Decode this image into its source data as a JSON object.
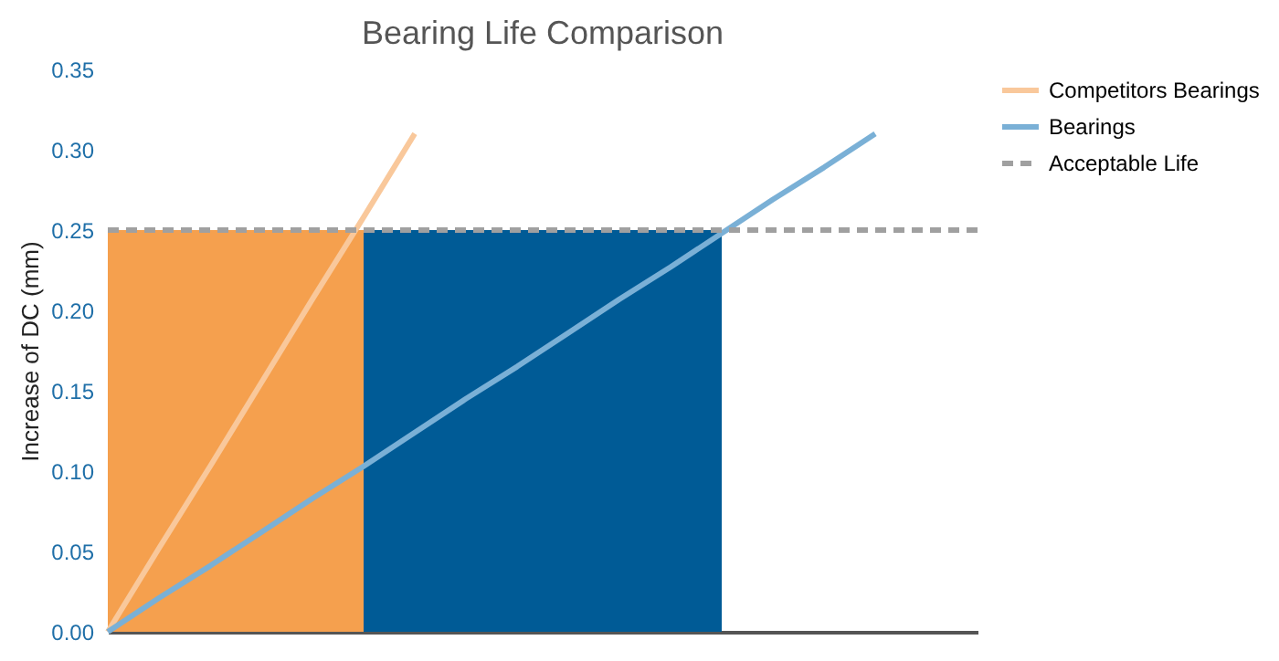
{
  "chart_data": {
    "type": "line",
    "title": "Bearing Life Comparison",
    "ylabel": "Increase of DC (mm)",
    "categories": [
      null,
      null,
      null,
      null,
      null,
      null,
      null,
      null,
      null,
      null,
      null,
      null,
      null,
      null,
      null,
      null,
      null,
      null
    ],
    "ylim": [
      0,
      0.35
    ],
    "yticks": [
      {
        "value": 0,
        "label": "0.00"
      },
      {
        "value": 0.05,
        "label": "0.05"
      },
      {
        "value": 0.1,
        "label": "0.10"
      },
      {
        "value": 0.15,
        "label": "0.15"
      },
      {
        "value": 0.2,
        "label": "0.20"
      },
      {
        "value": 0.25,
        "label": "0.25"
      },
      {
        "value": 0.3,
        "label": "0.30"
      },
      {
        "value": 0.35,
        "label": "0.35"
      }
    ],
    "tick_labels": "y",
    "grid": false,
    "legend": "right",
    "marker": "none",
    "series": [
      {
        "type": "area",
        "color": "#f5a04e",
        "values": [
          0.25,
          0.25,
          0.25,
          0.25,
          0.25,
          0.25,
          null,
          null,
          null,
          null,
          null,
          null,
          null,
          null,
          null,
          null,
          null,
          null
        ]
      },
      {
        "type": "area",
        "color": "#005b96",
        "values": [
          null,
          null,
          null,
          null,
          null,
          0.25,
          0.25,
          0.25,
          0.25,
          0.25,
          0.25,
          0.25,
          0.25,
          null,
          null,
          null,
          null,
          null
        ]
      },
      {
        "name": "Competitors Bearings",
        "color": "#f9c89b",
        "line_style": "solid",
        "values": [
          0,
          0.052,
          0.103,
          0.155,
          0.207,
          0.258,
          0.31,
          null,
          null,
          null,
          null,
          null,
          null,
          null,
          null,
          null,
          null,
          null
        ]
      },
      {
        "name": "Bearings",
        "color": "#7ab0d6",
        "line_style": "solid",
        "values": [
          0,
          0.021,
          0.041,
          0.062,
          0.083,
          0.103,
          0.124,
          0.145,
          0.165,
          0.186,
          0.207,
          0.227,
          0.248,
          0.269,
          0.289,
          0.31,
          null,
          null
        ]
      },
      {
        "name": "Acceptable Life",
        "color": "#a0a0a0",
        "line_style": "dashed",
        "values": [
          0.25,
          0.25,
          0.25,
          0.25,
          0.25,
          0.25,
          0.25,
          0.25,
          0.25,
          0.25,
          0.25,
          0.25,
          0.25,
          0.25,
          0.25,
          0.25,
          0.25,
          0.25
        ]
      }
    ]
  }
}
